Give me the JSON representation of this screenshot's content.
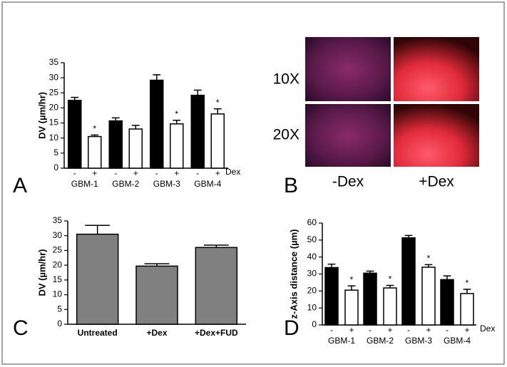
{
  "chart_data": [
    {
      "type": "bar",
      "panel": "A",
      "ylabel": "DV (µm/hr)",
      "xlabel": "Dex",
      "categories": [
        "GBM-1",
        "GBM-2",
        "GBM-3",
        "GBM-4"
      ],
      "ylim": [
        0,
        35
      ],
      "yticks": [
        0,
        5,
        10,
        15,
        20,
        25,
        30,
        35
      ],
      "series": [
        {
          "name": "-",
          "color": "#000000",
          "values": [
            22.5,
            15.7,
            29.2,
            24.2
          ],
          "errors": [
            1,
            1,
            1.8,
            1.7
          ],
          "significance": [
            null,
            null,
            null,
            null
          ]
        },
        {
          "name": "+",
          "color": "#ffffff",
          "values": [
            10.5,
            13,
            14.7,
            18
          ],
          "errors": [
            0.5,
            1.2,
            1.2,
            1.7
          ],
          "significance": [
            "*",
            null,
            "*",
            "*"
          ]
        }
      ]
    },
    {
      "type": "bar",
      "panel": "C",
      "ylabel": "DV (µm/hr)",
      "categories": [
        "Untreated",
        "+Dex",
        "+Dex+FUD"
      ],
      "ylim": [
        0,
        35
      ],
      "yticks": [
        0,
        5,
        10,
        15,
        20,
        25,
        30,
        35
      ],
      "color": "#808080",
      "values": [
        30.5,
        19.7,
        26
      ],
      "errors": [
        3,
        0.8,
        0.8
      ]
    },
    {
      "type": "bar",
      "panel": "D",
      "ylabel": "z-Axis distance (µm)",
      "xlabel": "Dex",
      "categories": [
        "GBM-1",
        "GBM-2",
        "GBM-3",
        "GBM-4"
      ],
      "ylim": [
        0,
        60
      ],
      "yticks": [
        0,
        10,
        20,
        30,
        40,
        50,
        60
      ],
      "series": [
        {
          "name": "-",
          "color": "#000000",
          "values": [
            33.8,
            30.5,
            51.3,
            26.7
          ],
          "errors": [
            2,
            1.2,
            1.4,
            2.2
          ],
          "significance": [
            null,
            null,
            null,
            null
          ]
        },
        {
          "name": "+",
          "color": "#ffffff",
          "values": [
            20.5,
            21.8,
            34,
            18.5
          ],
          "errors": [
            2.5,
            1.5,
            1.5,
            2.5
          ],
          "significance": [
            "*",
            "*",
            "*",
            "*"
          ]
        }
      ]
    }
  ],
  "image_panel": {
    "panel": "B",
    "rows": [
      "10X",
      "20X"
    ],
    "columns": [
      "-Dex",
      "+Dex"
    ]
  }
}
